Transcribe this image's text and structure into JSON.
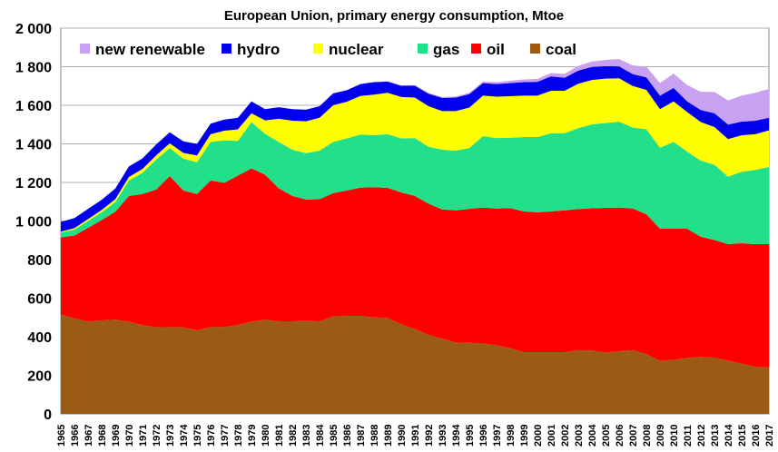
{
  "chart_data": {
    "type": "area",
    "stacked": true,
    "title": "European Union, primary energy consumption, Mtoe",
    "xlabel": "",
    "ylabel": "",
    "ylim": [
      0,
      2000
    ],
    "yticks": [
      0,
      200,
      400,
      600,
      800,
      1000,
      1200,
      1400,
      1600,
      1800,
      2000
    ],
    "ytick_labels": [
      "0",
      "200",
      "400",
      "600",
      "800",
      "1 000",
      "1 200",
      "1 400",
      "1 600",
      "1 800",
      "2 000"
    ],
    "grid": "horizontal",
    "legend_position": "top",
    "x": [
      1965,
      1966,
      1967,
      1968,
      1969,
      1970,
      1971,
      1972,
      1973,
      1974,
      1975,
      1976,
      1977,
      1978,
      1979,
      1980,
      1981,
      1982,
      1983,
      1984,
      1985,
      1986,
      1987,
      1988,
      1989,
      1990,
      1991,
      1992,
      1993,
      1994,
      1995,
      1996,
      1997,
      1998,
      1999,
      2000,
      2001,
      2002,
      2003,
      2004,
      2005,
      2006,
      2007,
      2008,
      2009,
      2010,
      2011,
      2012,
      2013,
      2014,
      2015,
      2016,
      2017
    ],
    "x_labels": [
      "1965",
      "1966",
      "1967",
      "1968",
      "1969",
      "1970",
      "1971",
      "1972",
      "1973",
      "1974",
      "1975",
      "1976",
      "1977",
      "1978",
      "1979",
      "1980",
      "1981",
      "1982",
      "1983",
      "1984",
      "1985",
      "1986",
      "1987",
      "1988",
      "1989",
      "1990",
      "1991",
      "1992",
      "1993",
      "1994",
      "1995",
      "1996",
      "1997",
      "1998",
      "1999",
      "2000",
      "2001",
      "2002",
      "2003",
      "2004",
      "2005",
      "2006",
      "2007",
      "2008",
      "2009",
      "2010",
      "2011",
      "2012",
      "2013",
      "2014",
      "2015",
      "2016",
      "2017"
    ],
    "series": [
      {
        "name": "coal",
        "color": "#9c5b14",
        "values": [
          515,
          495,
          478,
          485,
          488,
          478,
          460,
          448,
          450,
          448,
          433,
          450,
          450,
          460,
          478,
          488,
          480,
          480,
          482,
          480,
          505,
          508,
          508,
          500,
          497,
          465,
          440,
          410,
          390,
          370,
          368,
          365,
          355,
          340,
          320,
          320,
          320,
          320,
          330,
          328,
          318,
          325,
          330,
          310,
          275,
          280,
          290,
          295,
          292,
          275,
          260,
          245,
          240
        ]
      },
      {
        "name": "oil",
        "color": "#ff0000",
        "values": [
          400,
          430,
          487,
          520,
          560,
          652,
          680,
          715,
          783,
          710,
          707,
          760,
          748,
          775,
          795,
          752,
          690,
          650,
          630,
          633,
          640,
          650,
          665,
          675,
          675,
          683,
          690,
          680,
          670,
          685,
          695,
          705,
          710,
          727,
          730,
          725,
          730,
          735,
          732,
          738,
          750,
          745,
          735,
          725,
          685,
          680,
          670,
          623,
          610,
          605,
          625,
          635,
          640
        ]
      },
      {
        "name": "gas",
        "color": "#22e08a",
        "values": [
          25,
          30,
          35,
          40,
          50,
          80,
          110,
          155,
          145,
          165,
          165,
          200,
          220,
          180,
          240,
          212,
          240,
          240,
          240,
          252,
          265,
          270,
          275,
          270,
          278,
          280,
          300,
          295,
          310,
          310,
          315,
          370,
          365,
          365,
          385,
          390,
          405,
          400,
          420,
          435,
          440,
          445,
          420,
          440,
          420,
          450,
          400,
          395,
          390,
          350,
          370,
          385,
          400
        ]
      },
      {
        "name": "nuclear",
        "color": "#ffff00",
        "values": [
          5,
          8,
          10,
          12,
          15,
          18,
          20,
          22,
          25,
          30,
          35,
          40,
          50,
          60,
          45,
          70,
          120,
          150,
          165,
          170,
          190,
          190,
          200,
          210,
          215,
          215,
          210,
          210,
          200,
          205,
          210,
          210,
          215,
          215,
          215,
          215,
          220,
          220,
          230,
          230,
          230,
          225,
          215,
          205,
          200,
          210,
          205,
          200,
          195,
          195,
          190,
          185,
          190
        ]
      },
      {
        "name": "hydro",
        "color": "#0000ee",
        "values": [
          50,
          52,
          53,
          53,
          55,
          55,
          55,
          57,
          57,
          60,
          60,
          55,
          58,
          60,
          62,
          58,
          60,
          60,
          60,
          60,
          62,
          60,
          62,
          65,
          58,
          58,
          62,
          65,
          68,
          70,
          70,
          65,
          65,
          68,
          70,
          72,
          75,
          68,
          68,
          68,
          65,
          62,
          62,
          65,
          70,
          70,
          55,
          62,
          72,
          75,
          70,
          70,
          65
        ]
      },
      {
        "name": "new renewable",
        "color": "#c8a2f0",
        "values": [
          0,
          0,
          0,
          0,
          0,
          0,
          0,
          0,
          0,
          0,
          0,
          0,
          0,
          0,
          0,
          0,
          0,
          0,
          0,
          0,
          0,
          0,
          0,
          0,
          2,
          2,
          3,
          4,
          5,
          6,
          7,
          8,
          10,
          12,
          14,
          15,
          17,
          20,
          25,
          28,
          32,
          38,
          45,
          55,
          65,
          75,
          85,
          95,
          110,
          125,
          135,
          145,
          150
        ]
      }
    ]
  }
}
